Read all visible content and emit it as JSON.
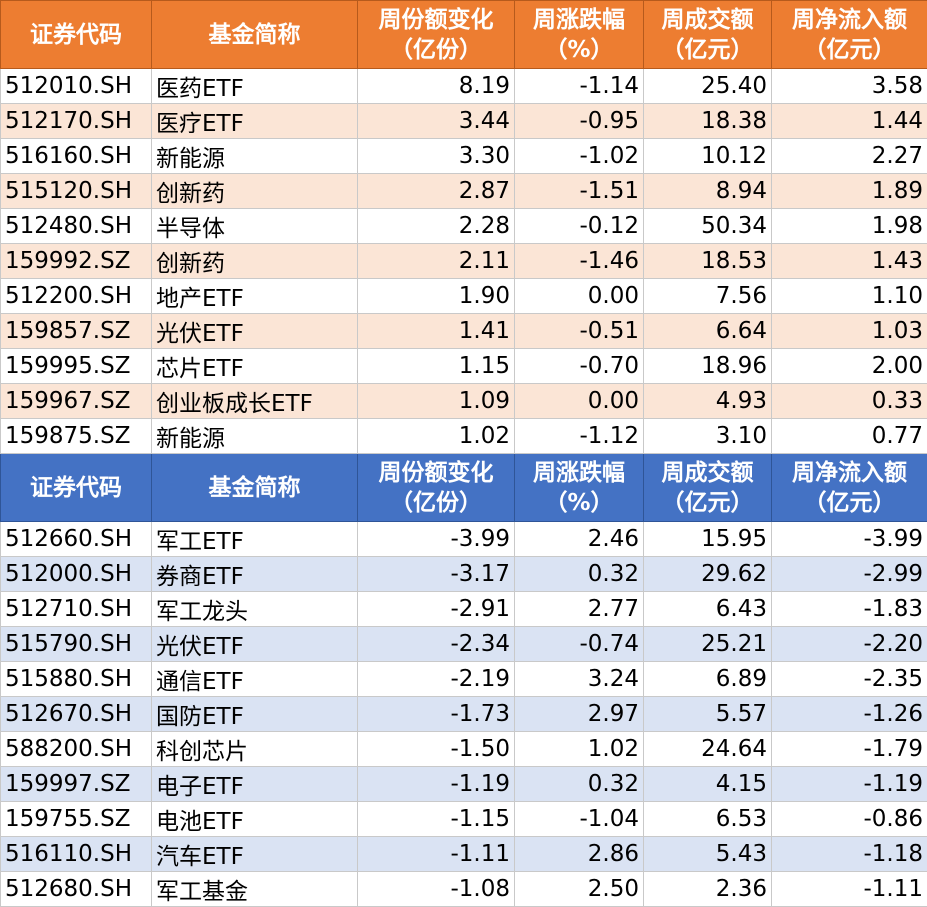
{
  "headers": {
    "code": "证券代码",
    "name": "基金简称",
    "share_change": [
      "周份额变化",
      "（亿份）"
    ],
    "change_pct": [
      "周涨跌幅",
      "（%）"
    ],
    "turnover": [
      "周成交额",
      "（亿元）"
    ],
    "net_inflow": [
      "周净流入额",
      "（亿元）"
    ]
  },
  "inflow_rows": [
    {
      "code": "512010.SH",
      "name": "医药ETF",
      "share_change": "8.19",
      "change_pct": "-1.14",
      "turnover": "25.40",
      "net_inflow": "3.58"
    },
    {
      "code": "512170.SH",
      "name": "医疗ETF",
      "share_change": "3.44",
      "change_pct": "-0.95",
      "turnover": "18.38",
      "net_inflow": "1.44"
    },
    {
      "code": "516160.SH",
      "name": "新能源",
      "share_change": "3.30",
      "change_pct": "-1.02",
      "turnover": "10.12",
      "net_inflow": "2.27"
    },
    {
      "code": "515120.SH",
      "name": "创新药",
      "share_change": "2.87",
      "change_pct": "-1.51",
      "turnover": "8.94",
      "net_inflow": "1.89"
    },
    {
      "code": "512480.SH",
      "name": "半导体",
      "share_change": "2.28",
      "change_pct": "-0.12",
      "turnover": "50.34",
      "net_inflow": "1.98"
    },
    {
      "code": "159992.SZ",
      "name": "创新药",
      "share_change": "2.11",
      "change_pct": "-1.46",
      "turnover": "18.53",
      "net_inflow": "1.43"
    },
    {
      "code": "512200.SH",
      "name": "地产ETF",
      "share_change": "1.90",
      "change_pct": "0.00",
      "turnover": "7.56",
      "net_inflow": "1.10"
    },
    {
      "code": "159857.SZ",
      "name": "光伏ETF",
      "share_change": "1.41",
      "change_pct": "-0.51",
      "turnover": "6.64",
      "net_inflow": "1.03"
    },
    {
      "code": "159995.SZ",
      "name": "芯片ETF",
      "share_change": "1.15",
      "change_pct": "-0.70",
      "turnover": "18.96",
      "net_inflow": "2.00"
    },
    {
      "code": "159967.SZ",
      "name": "创业板成长ETF",
      "share_change": "1.09",
      "change_pct": "0.00",
      "turnover": "4.93",
      "net_inflow": "0.33"
    },
    {
      "code": "159875.SZ",
      "name": "新能源",
      "share_change": "1.02",
      "change_pct": "-1.12",
      "turnover": "3.10",
      "net_inflow": "0.77"
    }
  ],
  "outflow_rows": [
    {
      "code": "512660.SH",
      "name": "军工ETF",
      "share_change": "-3.99",
      "change_pct": "2.46",
      "turnover": "15.95",
      "net_inflow": "-3.99"
    },
    {
      "code": "512000.SH",
      "name": "券商ETF",
      "share_change": "-3.17",
      "change_pct": "0.32",
      "turnover": "29.62",
      "net_inflow": "-2.99"
    },
    {
      "code": "512710.SH",
      "name": "军工龙头",
      "share_change": "-2.91",
      "change_pct": "2.77",
      "turnover": "6.43",
      "net_inflow": "-1.83"
    },
    {
      "code": "515790.SH",
      "name": "光伏ETF",
      "share_change": "-2.34",
      "change_pct": "-0.74",
      "turnover": "25.21",
      "net_inflow": "-2.20"
    },
    {
      "code": "515880.SH",
      "name": "通信ETF",
      "share_change": "-2.19",
      "change_pct": "3.24",
      "turnover": "6.89",
      "net_inflow": "-2.35"
    },
    {
      "code": "512670.SH",
      "name": "国防ETF",
      "share_change": "-1.73",
      "change_pct": "2.97",
      "turnover": "5.57",
      "net_inflow": "-1.26"
    },
    {
      "code": "588200.SH",
      "name": "科创芯片",
      "share_change": "-1.50",
      "change_pct": "1.02",
      "turnover": "24.64",
      "net_inflow": "-1.79"
    },
    {
      "code": "159997.SZ",
      "name": "电子ETF",
      "share_change": "-1.19",
      "change_pct": "0.32",
      "turnover": "4.15",
      "net_inflow": "-1.19"
    },
    {
      "code": "159755.SZ",
      "name": "电池ETF",
      "share_change": "-1.15",
      "change_pct": "-1.04",
      "turnover": "6.53",
      "net_inflow": "-0.86"
    },
    {
      "code": "516110.SH",
      "name": "汽车ETF",
      "share_change": "-1.11",
      "change_pct": "2.86",
      "turnover": "5.43",
      "net_inflow": "-1.18"
    },
    {
      "code": "512680.SH",
      "name": "军工基金",
      "share_change": "-1.08",
      "change_pct": "2.50",
      "turnover": "2.36",
      "net_inflow": "-1.11"
    }
  ],
  "colors": {
    "inflow_header": "#ed7d31",
    "inflow_band": "#fbe5d6",
    "outflow_header": "#4472c4",
    "outflow_band": "#dae3f3"
  }
}
